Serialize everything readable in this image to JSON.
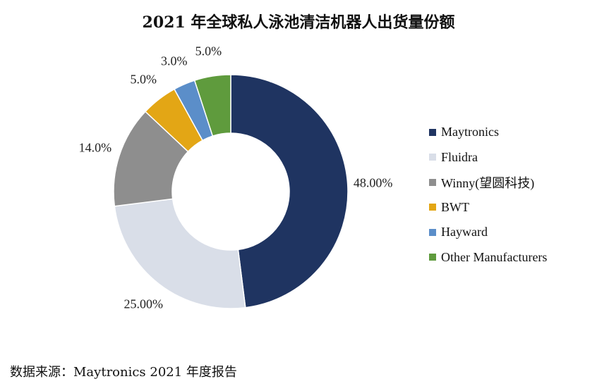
{
  "title": "2021 年全球私人泳池清洁机器人出货量份额",
  "source": "数据来源：Maytronics 2021 年度报告",
  "chart_data": {
    "type": "pie",
    "donut": true,
    "title": "2021 年全球私人泳池清洁机器人出货量份额",
    "legend_position": "right",
    "slices": [
      {
        "name": "Maytronics",
        "value": 48.0,
        "label": "48.00%",
        "color": "#1f3461"
      },
      {
        "name": "Fluidra",
        "value": 25.0,
        "label": "25.00%",
        "color": "#d9dee8"
      },
      {
        "name": "Winny(望圆科技)",
        "value": 14.0,
        "label": "14.0%",
        "color": "#8e8e8e"
      },
      {
        "name": "BWT",
        "value": 5.0,
        "label": "5.0%",
        "color": "#e3a615"
      },
      {
        "name": "Hayward",
        "value": 3.0,
        "label": "3.0%",
        "color": "#5b8ec9"
      },
      {
        "name": "Other Manufacturers",
        "value": 5.0,
        "label": "5.0%",
        "color": "#5f9b3d"
      }
    ]
  }
}
